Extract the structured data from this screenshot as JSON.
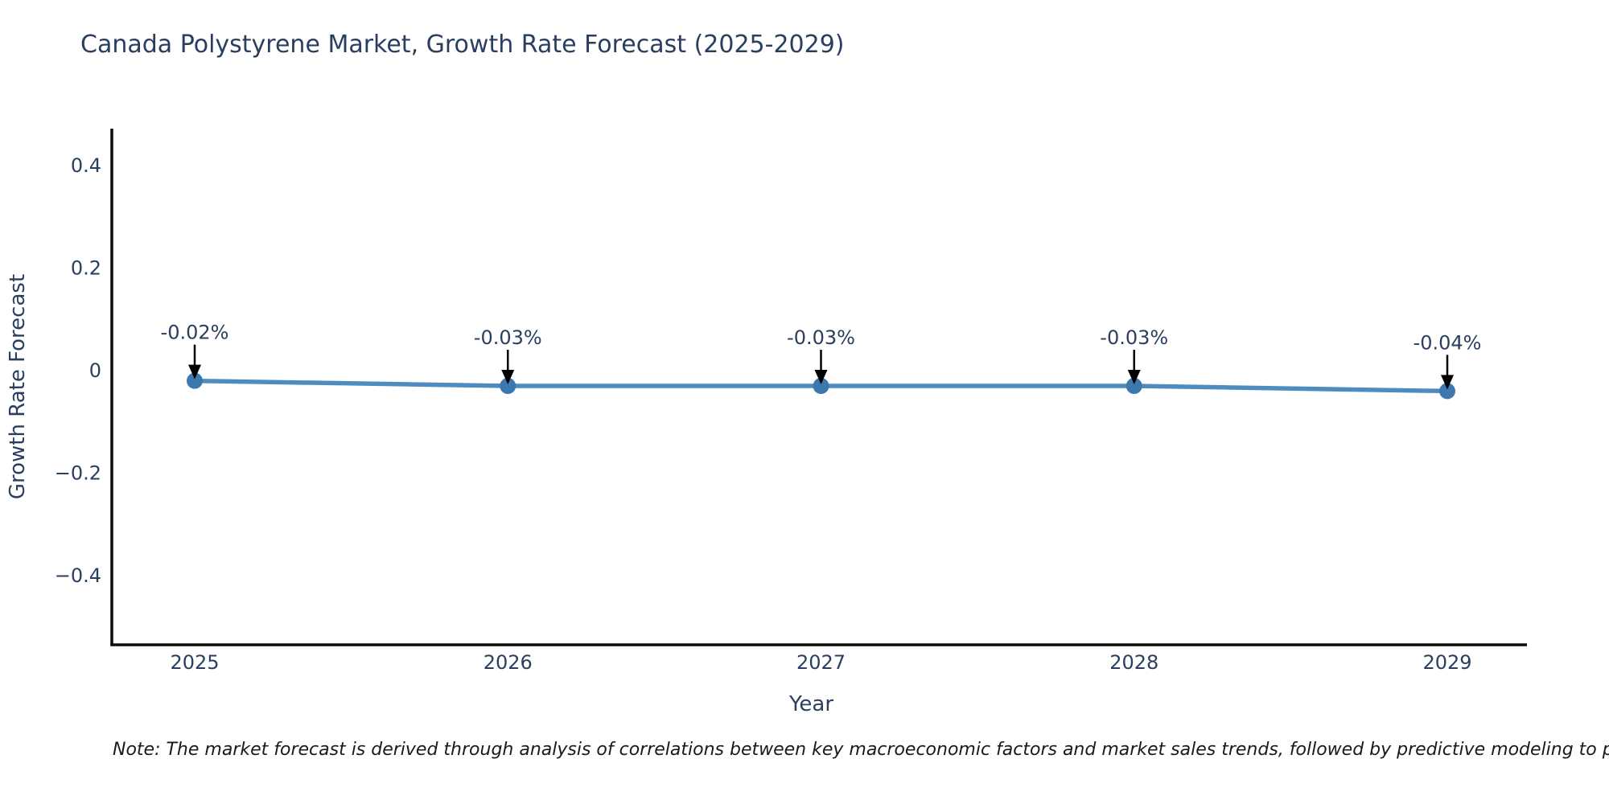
{
  "title": "Canada Polystyrene Market, Growth Rate Forecast (2025-2029)",
  "note": "Note: The market forecast is derived through analysis of correlations between key macroeconomic factors and market sales trends, followed by predictive modeling to project future sa",
  "colors": {
    "title_text": "#2a3f5f",
    "tick_text": "#2a3f5f",
    "axis_line": "#0c0c0c",
    "series_line": "#4e8cbf",
    "marker_fill": "#3c78ad",
    "annotation_arrow": "#000000",
    "note_text": "#1a1a1a",
    "background": "#ffffff"
  },
  "chart_data": {
    "type": "line",
    "title": "Canada Polystyrene Market, Growth Rate Forecast (2025-2029)",
    "xlabel": "Year",
    "ylabel": "Growth Rate Forecast",
    "x": [
      2025,
      2026,
      2027,
      2028,
      2029
    ],
    "x_tick_labels": [
      "2025",
      "2026",
      "2027",
      "2028",
      "2029"
    ],
    "values": [
      -0.02,
      -0.03,
      -0.03,
      -0.03,
      -0.04
    ],
    "point_labels": [
      "-0.02%",
      "-0.03%",
      "-0.03%",
      "-0.03%",
      "-0.04%"
    ],
    "y_ticks": [
      0.4,
      0.2,
      0,
      -0.2,
      -0.4
    ],
    "y_tick_labels": [
      "0.4",
      "0.2",
      "0",
      "−0.2",
      "−0.4"
    ],
    "ylim": [
      -0.54,
      0.47
    ],
    "grid": false,
    "legend": "none",
    "annotations": "value labels with downward arrows above each point"
  }
}
